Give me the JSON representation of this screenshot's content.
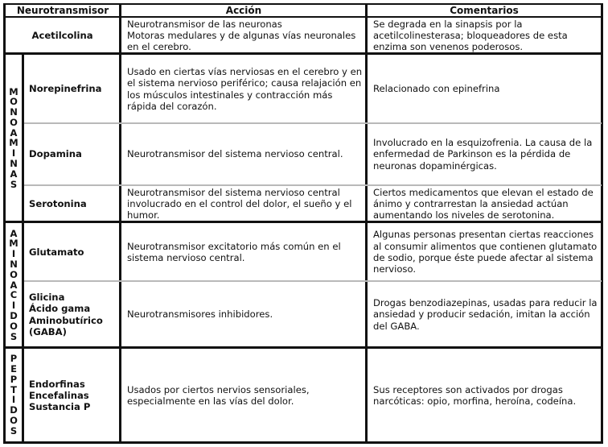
{
  "headers": {
    "neuro": "Neurotransmisor",
    "accion": "Acción",
    "comentarios": "Comentarios"
  },
  "rows": [
    {
      "name": "Acetilcolina",
      "accion": "Neurotransmisor de las neuronas\nMotoras medulares y de algunas vías neuronales en el cerebro.",
      "comentarios": "Se degrada en la sinapsis por la acetilcolinesterasa; bloqueadores de esta enzima son venenos poderosos."
    },
    {
      "name": "Norepinefrina",
      "accion": "Usado en ciertas vías nerviosas en el cerebro y en el sistema nervioso periférico; causa relajación en los músculos intestinales y contracción más rápida del corazón.",
      "comentarios": "Relacionado con epinefrina"
    },
    {
      "name": "Dopamina",
      "accion": "Neurotransmisor del sistema nervioso central.",
      "comentarios": "Involucrado en la esquizofrenia. La causa de la enfermedad de Parkinson es la pérdida de neuronas dopaminérgicas."
    },
    {
      "name": "Serotonina",
      "accion": "Neurotransmisor del sistema nervioso central involucrado en el control del dolor, el sueño y el humor.",
      "comentarios": "Ciertos medicamentos que elevan el estado de ánimo y contrarrestan la ansiedad actúan aumentando los niveles de serotonina."
    },
    {
      "name": "Glutamato",
      "accion": "Neurotransmisor excitatorio más común en el sistema nervioso central.",
      "comentarios": "Algunas personas presentan ciertas reacciones al consumir alimentos que contienen glutamato de sodio, porque éste puede afectar al sistema nervioso."
    },
    {
      "name": "Glicina\nÁcido gama\nAminobutírico\n(GABA)",
      "accion": "Neurotransmisores inhibidores.",
      "comentarios": "Drogas benzodiazepinas, usadas para reducir la ansiedad y producir sedación, imitan la acción del GABA."
    },
    {
      "name": "Endorfinas\nEncefalinas\nSustancia P",
      "accion": "Usados por ciertos nervios sensoriales, especialmente en las vías del dolor.",
      "comentarios": "Sus receptores son activados por drogas narcóticas: opio, morfina, heroína, codeína."
    }
  ],
  "groups": {
    "monoaminas": "MONOAMINAS",
    "aminoacidos": "AMINOACIDOS",
    "peptidos": "PEPTIDOS"
  }
}
